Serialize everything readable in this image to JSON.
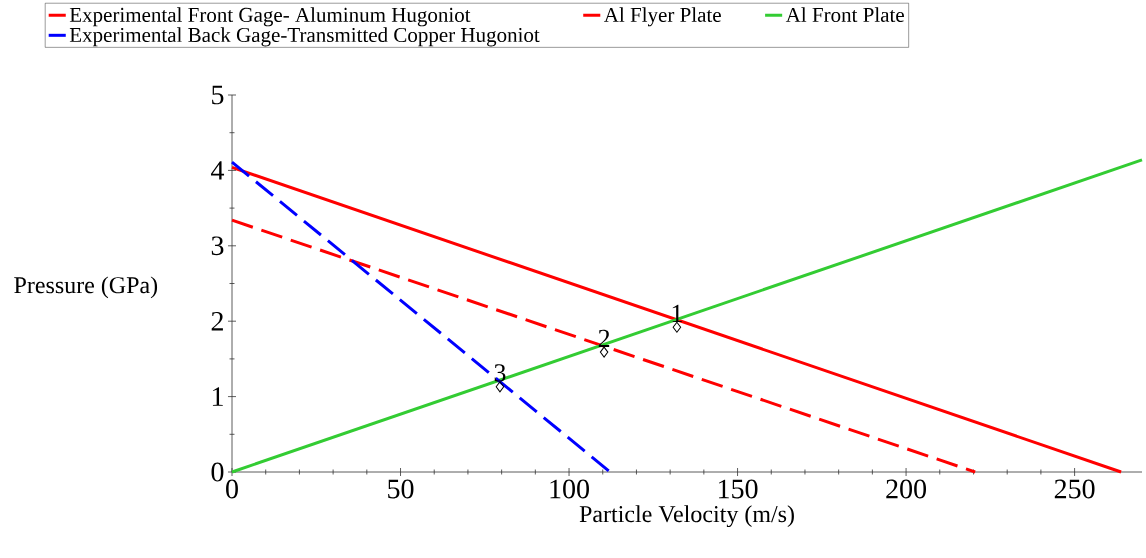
{
  "chart_data": {
    "type": "line",
    "xlabel": "Particle Velocity (m/s)",
    "ylabel": "Pressure (GPa)",
    "xlim": [
      0,
      270
    ],
    "ylim": [
      0,
      5
    ],
    "xticks": [
      0,
      50,
      100,
      150,
      200,
      250
    ],
    "yticks": [
      0,
      1,
      2,
      3,
      4,
      5
    ],
    "legend": "top",
    "grid": false,
    "series": [
      {
        "name": "Experimental Front Gage- Aluminum Hugoniot",
        "color": "#ff0000",
        "line_style": "dashed",
        "x": [
          0,
          220.5
        ],
        "values": [
          3.34,
          0
        ]
      },
      {
        "name": "Al Flyer Plate",
        "color": "#ff0000",
        "line_style": "solid",
        "x": [
          0,
          263.8
        ],
        "values": [
          4.04,
          0
        ]
      },
      {
        "name": "Al Front Plate",
        "color": "#33cc33",
        "line_style": "solid",
        "x": [
          0,
          270
        ],
        "values": [
          0,
          4.14
        ]
      },
      {
        "name": "Experimental Back Gage-Transmitted Copper Hugoniot",
        "color": "#0000ff",
        "line_style": "dashed",
        "x": [
          0,
          112.2
        ],
        "values": [
          4.11,
          0
        ]
      },
      {
        "type": "scatter",
        "color": "#000000",
        "marker": "diamond",
        "x": [
          132,
          110.4,
          79.5
        ],
        "values": [
          1.92,
          1.59,
          1.13
        ]
      }
    ],
    "annotations": [
      {
        "text": "1",
        "x": 132,
        "y": 1.92
      },
      {
        "text": "2",
        "x": 110.4,
        "y": 1.59
      },
      {
        "text": "3",
        "x": 79.5,
        "y": 1.13
      }
    ]
  }
}
